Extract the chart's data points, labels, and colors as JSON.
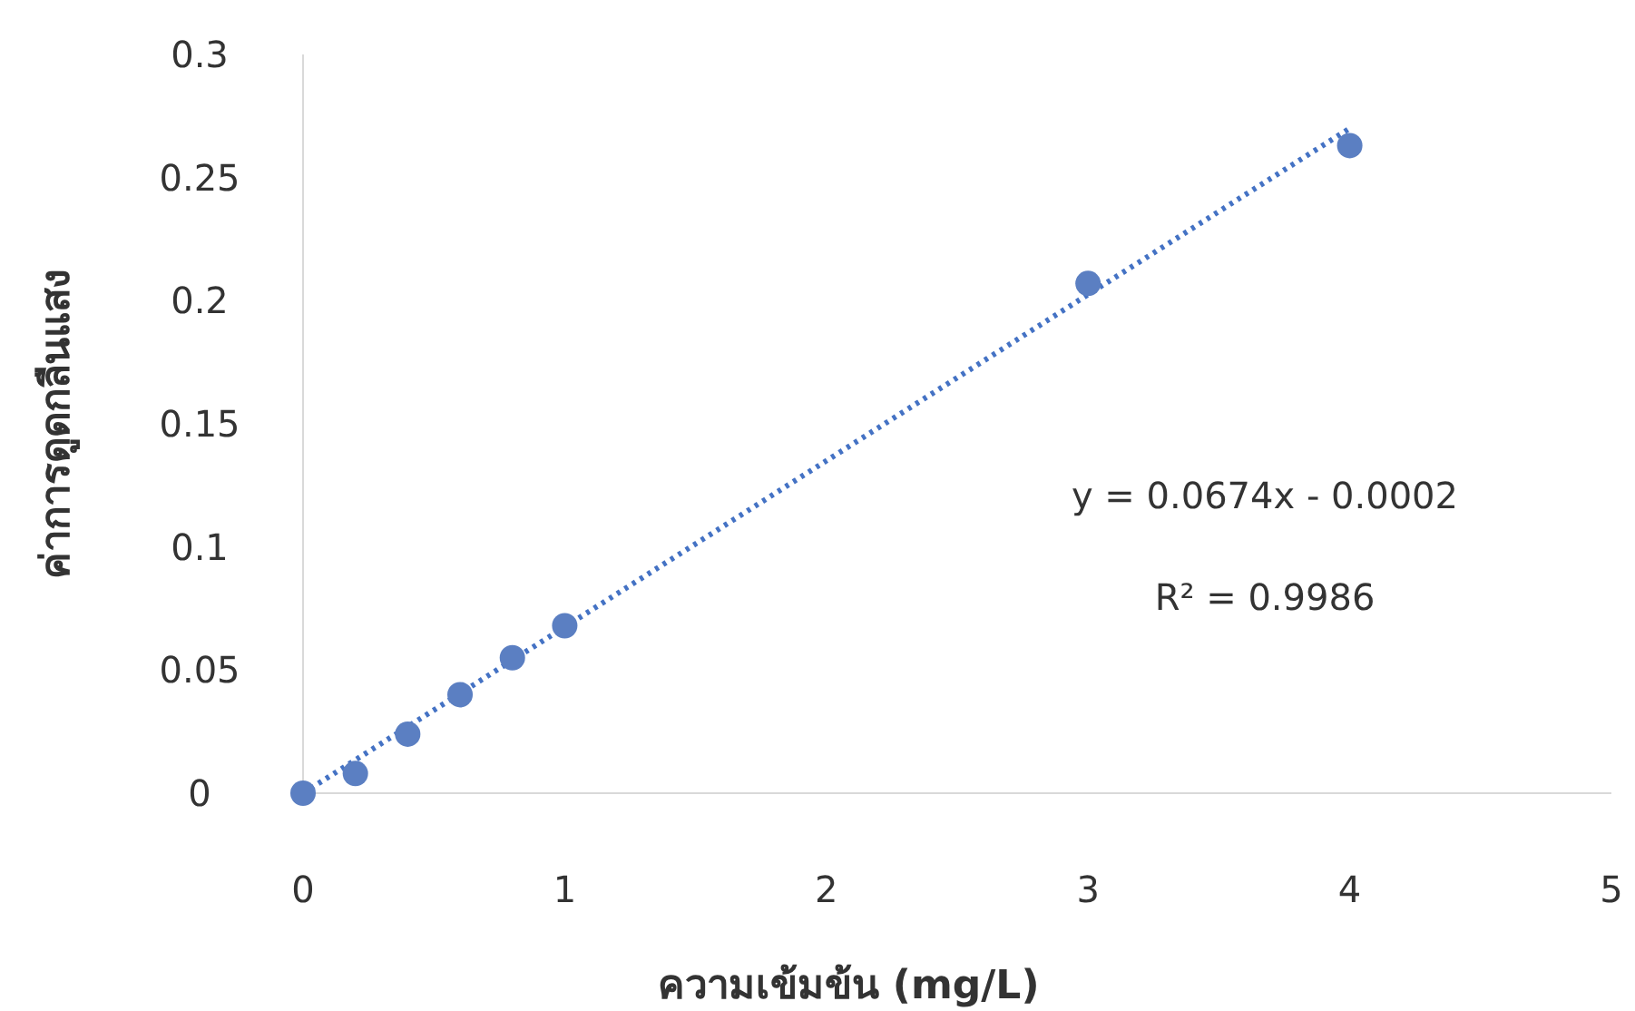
{
  "chart_data": {
    "type": "scatter",
    "xlabel": "ความเข้มข้น (mg/L)",
    "ylabel": "ค่าการดูดกลืนแสง",
    "x": [
      0,
      0.2,
      0.4,
      0.6,
      0.8,
      1,
      3,
      4
    ],
    "series": [
      {
        "color": "#5b7fc2",
        "marker": "circle",
        "values": [
          0,
          0.008,
          0.024,
          0.04,
          0.055,
          0.068,
          0.207,
          0.263
        ]
      },
      {
        "type": "line",
        "color": "#4472c4",
        "line_style": "dotted",
        "marker": "none",
        "x": [
          0,
          4
        ],
        "values": [
          0,
          0.27
        ]
      }
    ],
    "xlim": [
      0,
      5
    ],
    "ylim": [
      0,
      0.3
    ],
    "xticks": [
      0,
      1,
      2,
      3,
      4,
      5
    ],
    "yticks": [
      0,
      0.05,
      0.1,
      0.15,
      0.2,
      0.25,
      0.3
    ],
    "grid": false,
    "annotations": [
      "y = 0.0674x - 0.0002",
      "R² = 0.9986"
    ]
  }
}
